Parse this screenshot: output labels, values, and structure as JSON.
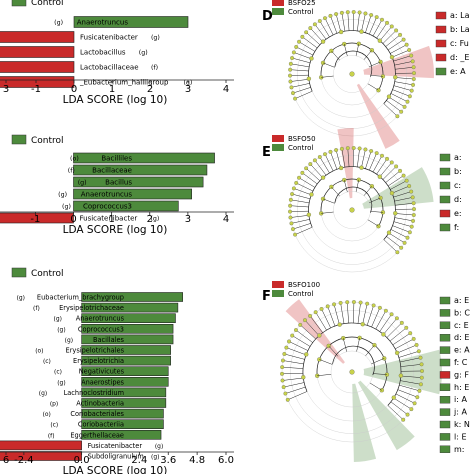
{
  "colors": {
    "enriched": "#c92a2a",
    "control": "#4d8a3c",
    "node": "#c8d24a",
    "edge": "#222222"
  },
  "chart_data": [
    {
      "type": "bar",
      "panel": "top-left",
      "legend": [
        "Control"
      ],
      "xlabel": "LDA SCORE (log 10)",
      "xticks": [
        "3",
        "-2",
        "-1",
        "0",
        "1",
        "2",
        "3",
        "4"
      ],
      "xlim": [
        -3,
        4
      ],
      "bars": [
        {
          "label": "Anaerotruncus",
          "tag": "(g)",
          "value": 3.0,
          "group": "Control"
        },
        {
          "label": "Fusicatenibacter",
          "tag": "(g)",
          "value": -3.0,
          "group": "BSFO25"
        },
        {
          "label": "Lactobacillus",
          "tag": "(g)",
          "value": -3.0,
          "group": "BSFO25"
        },
        {
          "label": "Lactobacillaceae",
          "tag": "(f)",
          "value": -3.0,
          "group": "BSFO25"
        },
        {
          "label": "_Eubacterium_halliigroup",
          "tag": "(g)",
          "value": -3.0,
          "group": "BSFO25"
        }
      ]
    },
    {
      "type": "bar",
      "panel": "middle-left",
      "legend": [
        "Control"
      ],
      "xlabel": "LDA SCORE (log 10)",
      "xticks": [
        "-2",
        "-1",
        "0",
        "1",
        "2",
        "3",
        "4"
      ],
      "xlim": [
        -2.4,
        4
      ],
      "bars": [
        {
          "label": "Bacilliles",
          "tag": "(o)",
          "value": 3.7,
          "group": "Control"
        },
        {
          "label": "Bacillaceae",
          "tag": "(f)",
          "value": 3.5,
          "group": "Control"
        },
        {
          "label": "Bacillus",
          "tag": "(g)",
          "value": 3.4,
          "group": "Control"
        },
        {
          "label": "Anaerotruncus",
          "tag": "(g)",
          "value": 3.1,
          "group": "Control"
        },
        {
          "label": "Coprococcus3",
          "tag": "(g)",
          "value": 2.75,
          "group": "Control"
        },
        {
          "label": "Fusicatenibacter",
          "tag": "(g)",
          "value": -2.4,
          "group": "BSFO50"
        }
      ]
    },
    {
      "type": "bar",
      "panel": "bottom-left",
      "legend": [
        "Control"
      ],
      "xlabel": "LDA SCORE (log 10)",
      "xticks": [
        "6",
        "-2.4",
        "0.0",
        "2.4",
        "3.6",
        "4.8",
        "6.0"
      ],
      "xlim": [
        -3.6,
        6.0
      ],
      "bars": [
        {
          "label": "Eubacterium_brachygroup",
          "tag": "(g)",
          "value": 4.2,
          "group": "Control"
        },
        {
          "label": "Erysipelotrichaceae",
          "tag": "(f)",
          "value": 4.0,
          "group": "Control"
        },
        {
          "label": "Anaerotruncus",
          "tag": "(g)",
          "value": 3.9,
          "group": "Control"
        },
        {
          "label": "Coprococcus3",
          "tag": "(g)",
          "value": 3.8,
          "group": "Control"
        },
        {
          "label": "Bacillales",
          "tag": "(g)",
          "value": 3.8,
          "group": "Control"
        },
        {
          "label": "Erysipelotrichales",
          "tag": "(o)",
          "value": 3.7,
          "group": "Control"
        },
        {
          "label": "Erysipelotrichia",
          "tag": "(c)",
          "value": 3.7,
          "group": "Control"
        },
        {
          "label": "Negativicutes",
          "tag": "(c)",
          "value": 3.6,
          "group": "Control"
        },
        {
          "label": "Anaerostipes",
          "tag": "(g)",
          "value": 3.6,
          "group": "Control"
        },
        {
          "label": "Lachnoclostridium",
          "tag": "(g)",
          "value": 3.5,
          "group": "Control"
        },
        {
          "label": "Actinobacteria",
          "tag": "(p)",
          "value": 3.5,
          "group": "Control"
        },
        {
          "label": "Coriobacteriales",
          "tag": "(o)",
          "value": 3.4,
          "group": "Control"
        },
        {
          "label": "Coriobacteriia",
          "tag": "(c)",
          "value": 3.4,
          "group": "Control"
        },
        {
          "label": "Eggerthellaceae",
          "tag": "(f)",
          "value": 3.3,
          "group": "Control"
        },
        {
          "label": "Fusicatenibacter",
          "tag": "(g)",
          "value": -3.6,
          "group": "BSFO100"
        },
        {
          "label": "Subdoligranulum",
          "tag": "(g)",
          "value": -3.6,
          "group": "BSFO100"
        }
      ]
    }
  ],
  "cladograms": [
    {
      "panel_letter": "D",
      "legend": [
        "BSFO25",
        "Control"
      ],
      "key": [
        {
          "text": "a: La",
          "color": "#c92a2a"
        },
        {
          "text": "b: La",
          "color": "#c92a2a"
        },
        {
          "text": "c: Fu",
          "color": "#c92a2a"
        },
        {
          "text": "d: _E",
          "color": "#c92a2a"
        },
        {
          "text": "e: A",
          "color": "#4d8a3c"
        }
      ]
    },
    {
      "panel_letter": "E",
      "legend": [
        "BSFO50",
        "Control"
      ],
      "key": [
        {
          "text": "a: ",
          "color": "#4d8a3c"
        },
        {
          "text": "b: ",
          "color": "#4d8a3c"
        },
        {
          "text": "c: ",
          "color": "#4d8a3c"
        },
        {
          "text": "d: ",
          "color": "#4d8a3c"
        },
        {
          "text": "e: ",
          "color": "#c92a2a"
        },
        {
          "text": "f: ",
          "color": "#4d8a3c"
        }
      ]
    },
    {
      "panel_letter": "F",
      "legend": [
        "BSFO100",
        "Control"
      ],
      "key": [
        {
          "text": "a: E",
          "color": "#4d8a3c"
        },
        {
          "text": "b: C",
          "color": "#4d8a3c"
        },
        {
          "text": "c: E",
          "color": "#4d8a3c"
        },
        {
          "text": "d: E",
          "color": "#4d8a3c"
        },
        {
          "text": "e: A",
          "color": "#4d8a3c"
        },
        {
          "text": "f: C",
          "color": "#4d8a3c"
        },
        {
          "text": "g: F",
          "color": "#c92a2a"
        },
        {
          "text": "h: E",
          "color": "#4d8a3c"
        },
        {
          "text": "i: A",
          "color": "#4d8a3c"
        },
        {
          "text": "j: A",
          "color": "#4d8a3c"
        },
        {
          "text": "k: N",
          "color": "#4d8a3c"
        },
        {
          "text": "l: E",
          "color": "#4d8a3c"
        },
        {
          "text": "m: ",
          "color": "#4d8a3c"
        }
      ]
    }
  ]
}
